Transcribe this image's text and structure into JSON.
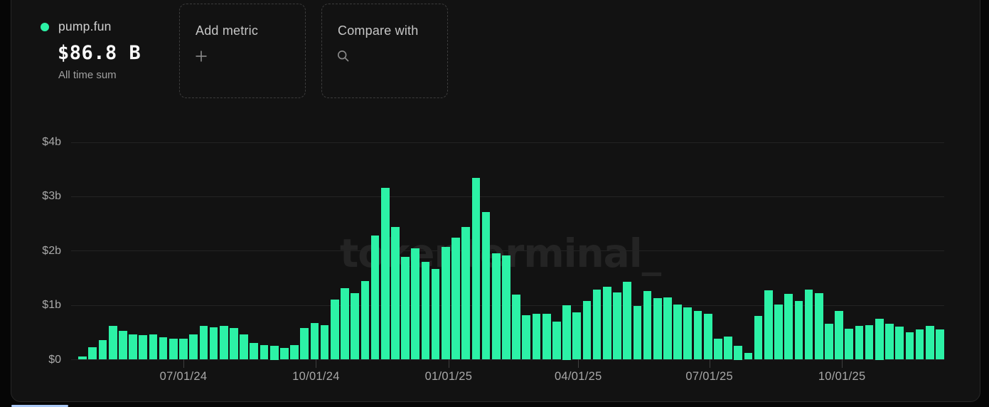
{
  "legend": {
    "series_name": "pump.fun",
    "value": "$86.8 B",
    "caption": "All time sum",
    "dot_color": "#2CF2A6"
  },
  "toolbar": {
    "add_metric_label": "Add metric",
    "compare_with_label": "Compare with"
  },
  "watermark_text": "tokenterminal_",
  "colors": {
    "bar": "#2CF2A6",
    "card_background": "#121212",
    "page_background": "#060606",
    "gridline": "#232323",
    "axis_text": "#a8a8a8",
    "scrollbar_thumb": "#a9c7f5"
  },
  "chart_data": {
    "type": "bar",
    "series_name": "pump.fun",
    "unit": "USD billions",
    "interval": "weekly",
    "start_date": "2024-04-22",
    "all_time_sum": "$86.8 B",
    "ylim": [
      0,
      4
    ],
    "grid": true,
    "bar_color": "#2CF2A6",
    "y_ticks": [
      {
        "label": "$0",
        "value": 0
      },
      {
        "label": "$1b",
        "value": 1
      },
      {
        "label": "$2b",
        "value": 2
      },
      {
        "label": "$3b",
        "value": 3
      },
      {
        "label": "$4b",
        "value": 4
      }
    ],
    "x_ticks": [
      "07/01/24",
      "10/01/24",
      "01/01/25",
      "04/01/25",
      "07/01/25",
      "10/01/25"
    ],
    "x_tick_week_offsets": [
      10,
      23.143,
      36.286,
      49.143,
      62.143,
      75.286
    ],
    "values": [
      0.06,
      0.23,
      0.36,
      0.62,
      0.53,
      0.47,
      0.45,
      0.46,
      0.41,
      0.39,
      0.39,
      0.46,
      0.62,
      0.59,
      0.62,
      0.58,
      0.47,
      0.31,
      0.27,
      0.25,
      0.22,
      0.27,
      0.58,
      0.67,
      0.63,
      1.11,
      1.31,
      1.23,
      1.45,
      2.29,
      3.16,
      2.44,
      1.89,
      2.05,
      1.8,
      1.67,
      2.07,
      2.24,
      2.44,
      3.35,
      2.72,
      1.96,
      1.92,
      1.2,
      0.82,
      0.85,
      0.84,
      0.7,
      1.0,
      0.87,
      1.08,
      1.29,
      1.34,
      1.24,
      1.43,
      0.99,
      1.27,
      1.13,
      1.14,
      1.02,
      0.96,
      0.9,
      0.84,
      0.39,
      0.43,
      0.25,
      0.13,
      0.8,
      1.28,
      1.02,
      1.21,
      1.08,
      1.29,
      1.23,
      0.66,
      0.9,
      0.57,
      0.62,
      0.64,
      0.75,
      0.66,
      0.61,
      0.51,
      0.55,
      0.62,
      0.55
    ]
  }
}
